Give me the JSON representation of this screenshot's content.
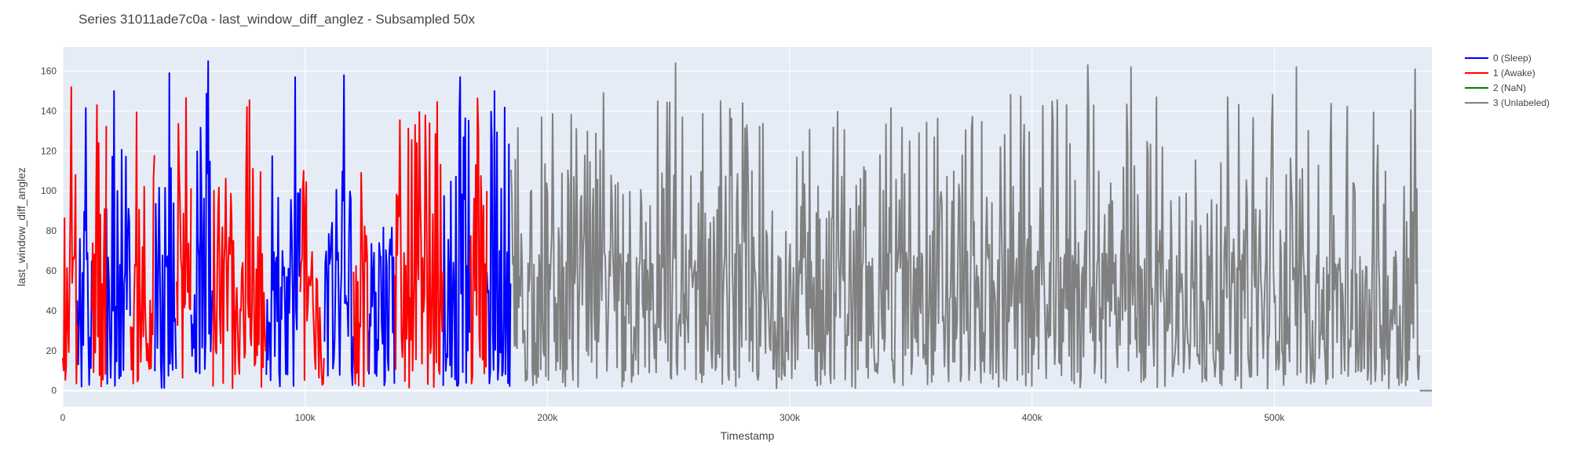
{
  "chart_data": {
    "type": "line",
    "title": "Series 31011ade7c0a - last_window_diff_anglez - Subsampled 50x",
    "xlabel": "Timestamp",
    "ylabel": "last_window_diff_anglez",
    "xlim": [
      0,
      565000
    ],
    "ylim": [
      -8,
      172
    ],
    "x_ticks": [
      0,
      100000,
      200000,
      300000,
      400000,
      500000
    ],
    "x_tick_labels": [
      "0",
      "100k",
      "200k",
      "300k",
      "400k",
      "500k"
    ],
    "y_ticks": [
      0,
      20,
      40,
      60,
      80,
      100,
      120,
      140,
      160
    ],
    "y_tick_labels": [
      "0",
      "20",
      "40",
      "60",
      "80",
      "100",
      "120",
      "140",
      "160"
    ],
    "grid": true,
    "legend_position": "top-right",
    "series": [
      {
        "name": "0 (Sleep)",
        "color": "#0000ff",
        "segments": [
          [
            6000,
            12000
          ],
          [
            18000,
            28000
          ],
          [
            38000,
            47000
          ],
          [
            53000,
            62000
          ],
          [
            84000,
            98000
          ],
          [
            108000,
            120000
          ],
          [
            126000,
            137000
          ],
          [
            157000,
            168000
          ],
          [
            175000,
            185000
          ]
        ],
        "peaks": [
          [
            21000,
            150
          ],
          [
            44000,
            159
          ],
          [
            60000,
            165
          ],
          [
            96000,
            157
          ],
          [
            116000,
            158
          ],
          [
            164000,
            157
          ],
          [
            178000,
            150
          ]
        ]
      },
      {
        "name": "1 (Awake)",
        "color": "#ff0000",
        "segments": [
          [
            0,
            6000
          ],
          [
            12000,
            18000
          ],
          [
            28000,
            38000
          ],
          [
            47000,
            53000
          ],
          [
            62000,
            84000
          ],
          [
            98000,
            108000
          ],
          [
            120000,
            126000
          ],
          [
            137000,
            157000
          ],
          [
            168000,
            175000
          ]
        ],
        "peaks": [
          [
            3500,
            152
          ],
          [
            14000,
            143
          ],
          [
            76000,
            142
          ],
          [
            146000,
            124
          ]
        ]
      },
      {
        "name": "2 (NaN)",
        "color": "#008000",
        "segments": [],
        "peaks": []
      },
      {
        "name": "3 (Unlabeled)",
        "color": "#808080",
        "segments": [
          [
            185000,
            560000
          ]
        ],
        "peaks": [
          [
            253000,
            164
          ],
          [
            423000,
            163
          ],
          [
            441000,
            162
          ],
          [
            509000,
            162
          ],
          [
            558000,
            161
          ]
        ],
        "tail": [
          [
            560000,
            0
          ],
          [
            565000,
            0
          ]
        ]
      }
    ]
  }
}
